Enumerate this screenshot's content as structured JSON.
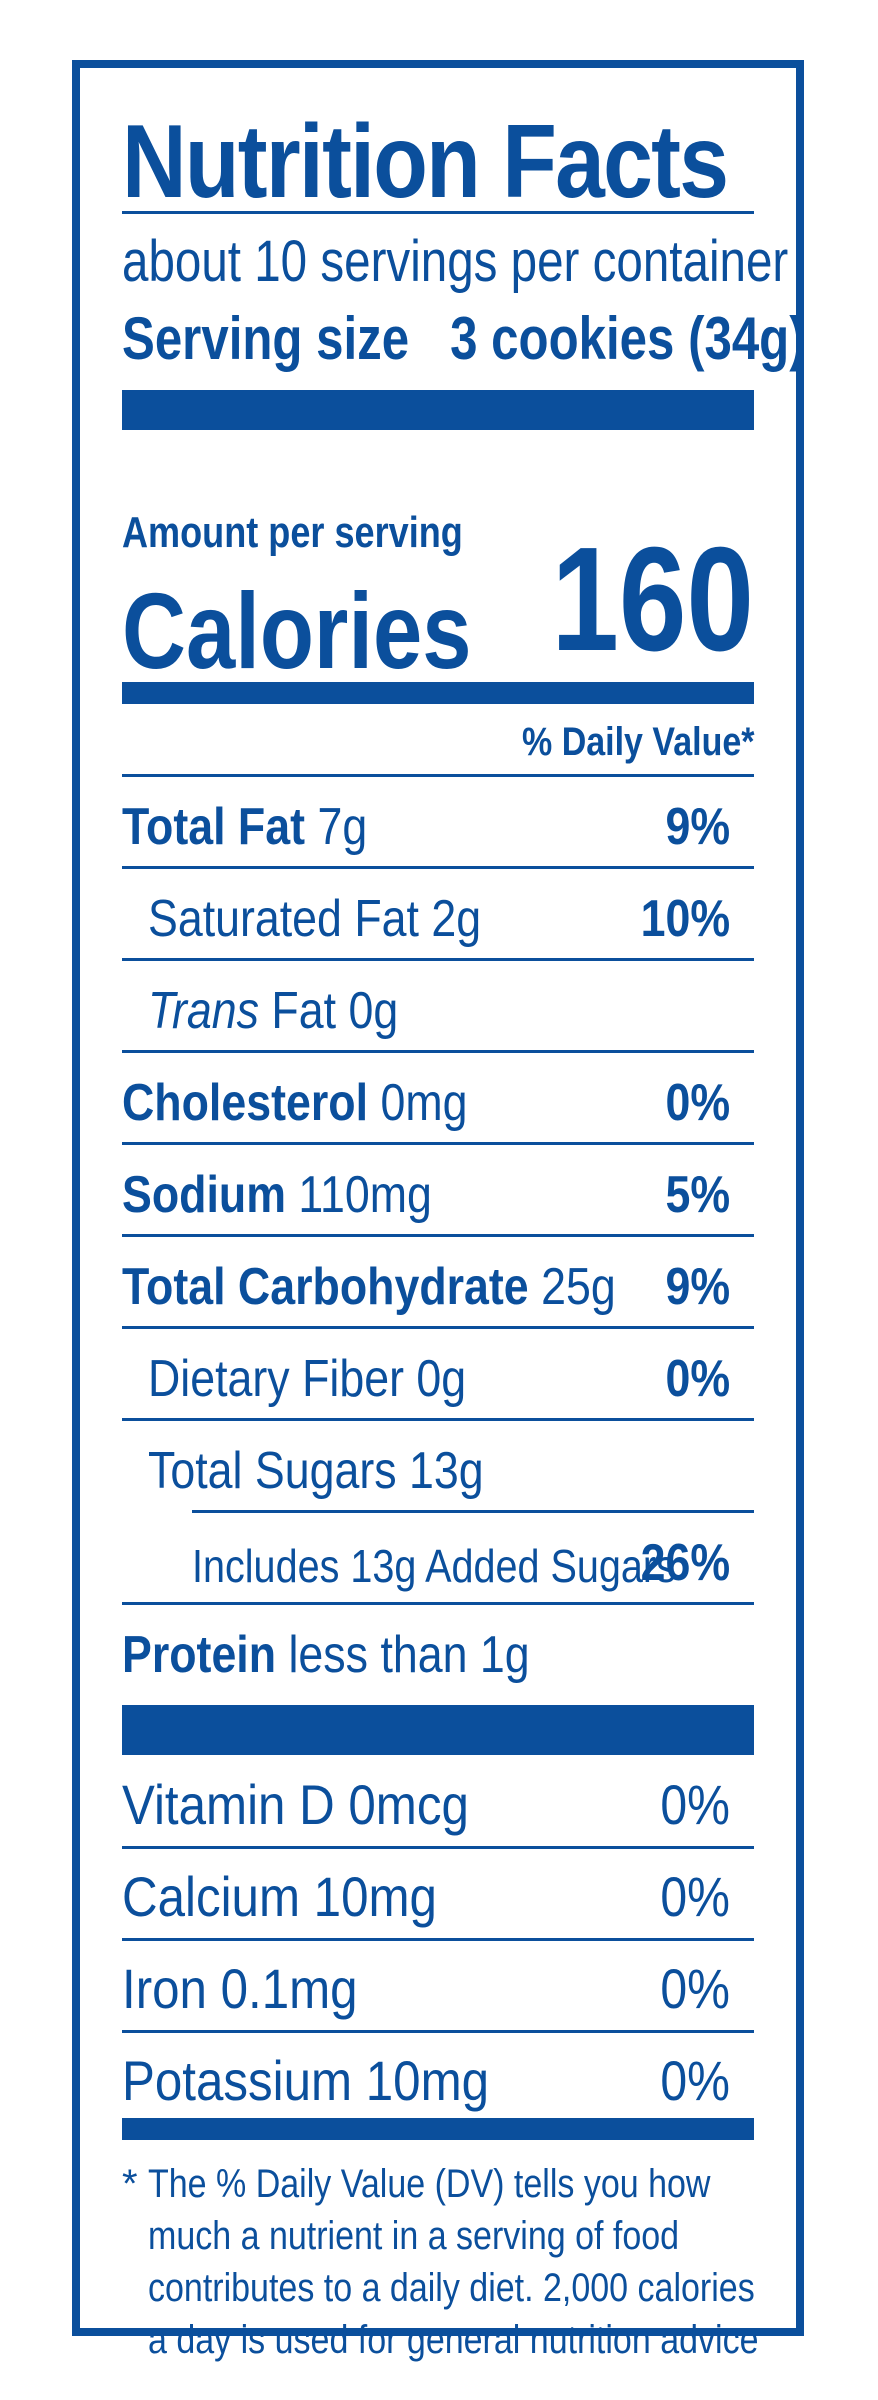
{
  "label": {
    "title": "Nutrition Facts",
    "servings_per_container": "about 10 servings per container",
    "serving_size_label": "Serving size",
    "serving_size_value": "3 cookies (34g)",
    "amount_per_serving": "Amount per serving",
    "calories_label": "Calories",
    "calories_value": "160",
    "daily_value_header": "% Daily Value*"
  },
  "nutrients": [
    {
      "name": "Total Fat",
      "amount": "7g",
      "dv": "9%"
    },
    {
      "name": "Saturated Fat",
      "amount": "2g",
      "dv": "10%"
    },
    {
      "name_italic": "Trans",
      "name": "Fat",
      "amount": "0g",
      "dv": ""
    },
    {
      "name": "Cholesterol",
      "amount": "0mg",
      "dv": "0%"
    },
    {
      "name": "Sodium",
      "amount": "110mg",
      "dv": "5%"
    },
    {
      "name": "Total Carbohydrate",
      "amount": "25g",
      "dv": "9%"
    },
    {
      "name": "Dietary Fiber",
      "amount": "0g",
      "dv": "0%"
    },
    {
      "name": "Total Sugars",
      "amount": "13g",
      "dv": ""
    },
    {
      "text": "Includes 13g Added Sugars",
      "dv": "26%"
    },
    {
      "name": "Protein",
      "amount": "less than 1g",
      "dv": ""
    }
  ],
  "vitamins": [
    {
      "text": "Vitamin D 0mcg",
      "dv": "0%"
    },
    {
      "text": "Calcium 10mg",
      "dv": "0%"
    },
    {
      "text": "Iron 0.1mg",
      "dv": "0%"
    },
    {
      "text": "Potassium 10mg",
      "dv": "0%"
    }
  ],
  "footnote": {
    "star": "*",
    "text": "The % Daily Value (DV) tells you how much a nutrient in a serving of food contributes to a daily diet. 2,000 calories a day is used for general nutrition advice"
  },
  "colors": {
    "ink": "#0b4f9c",
    "background": "#ffffff"
  }
}
